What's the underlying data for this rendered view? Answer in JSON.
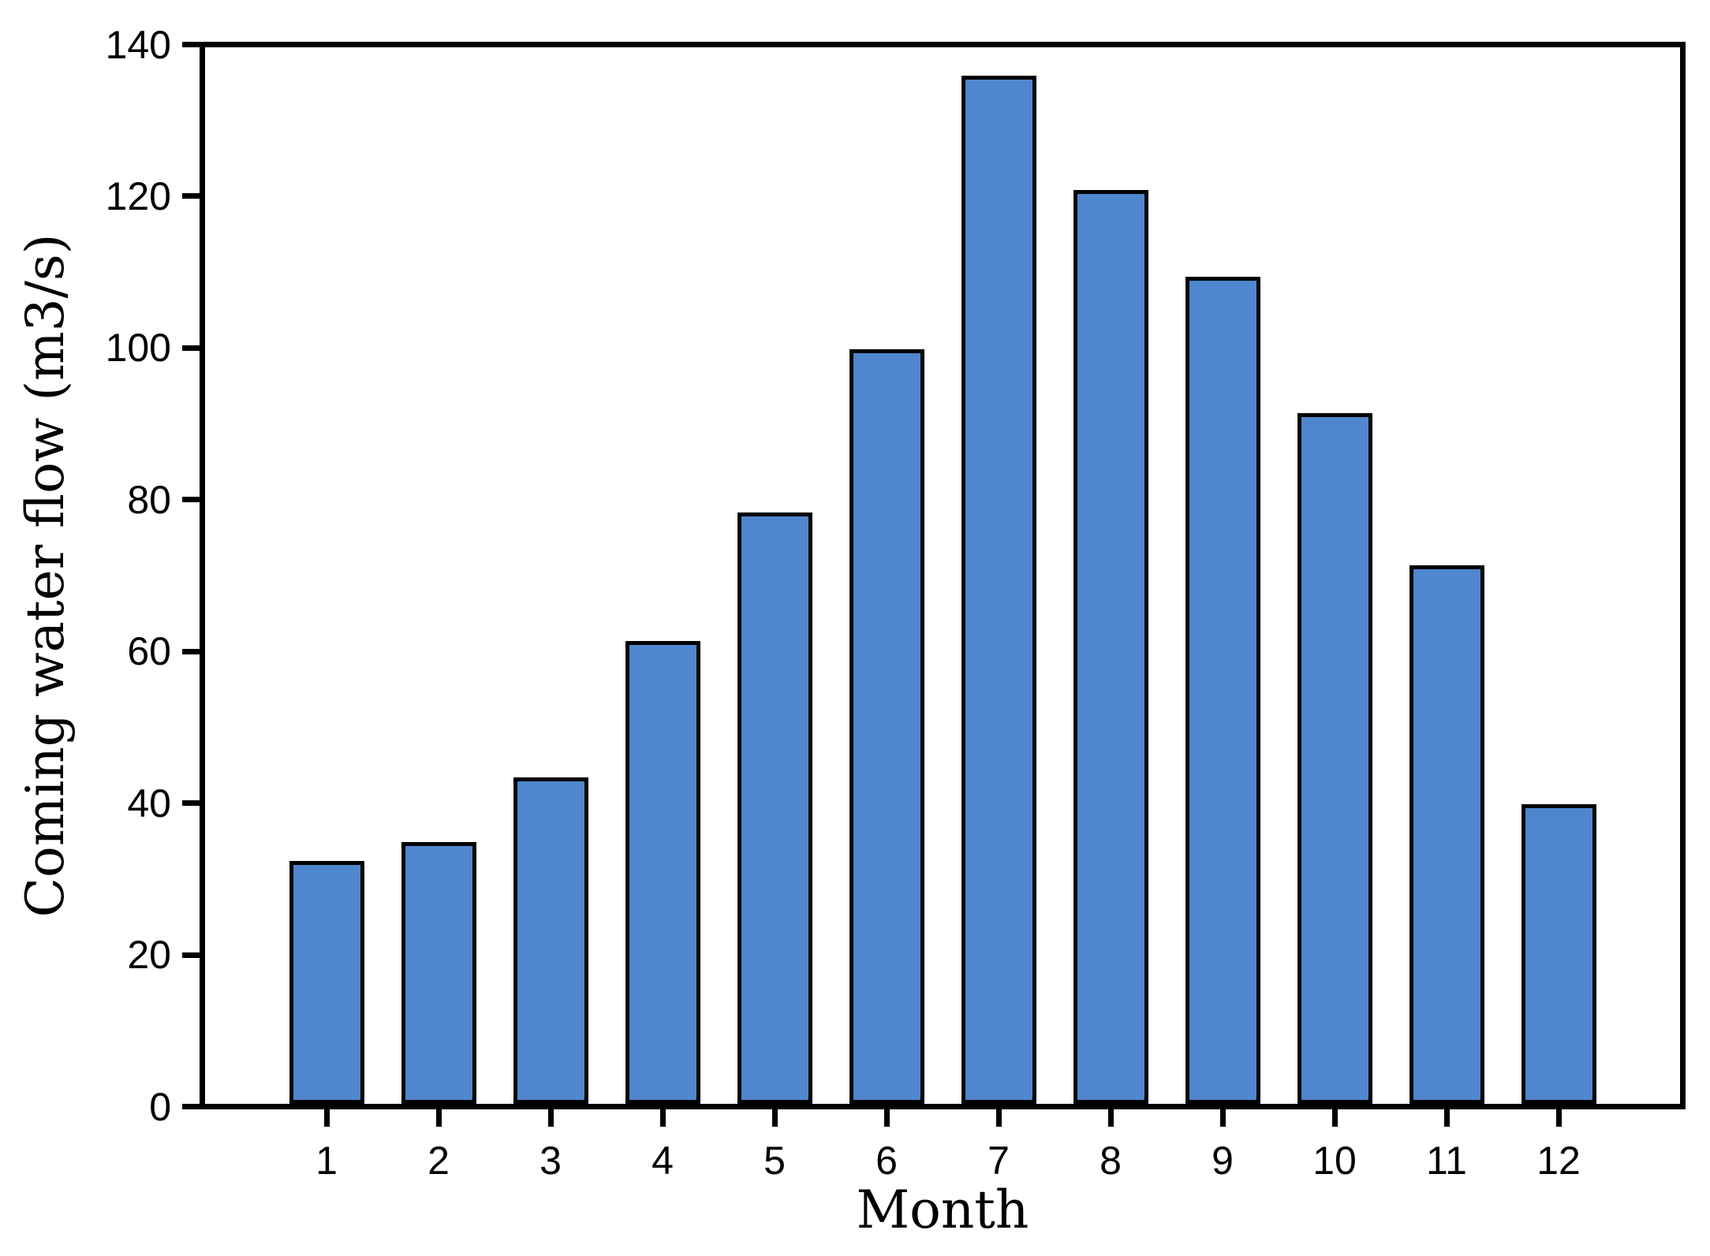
{
  "chart_data": {
    "type": "bar",
    "title": "",
    "xlabel": "Month",
    "ylabel": "Coming water flow (m3/s)",
    "categories": [
      "1",
      "2",
      "3",
      "4",
      "5",
      "6",
      "7",
      "8",
      "9",
      "10",
      "11",
      "12"
    ],
    "values": [
      32,
      34.5,
      43,
      61,
      78,
      99.5,
      135.5,
      120.5,
      109,
      91,
      71,
      39.5
    ],
    "ylim": [
      0,
      140
    ],
    "yticks": [
      0,
      20,
      40,
      60,
      80,
      100,
      120,
      140
    ],
    "grid": false,
    "legend": null,
    "bar_fill_color": "#4e87cd",
    "bar_edge_color": "#000000",
    "axis_color": "#000000",
    "background_color": "#ffffff"
  }
}
